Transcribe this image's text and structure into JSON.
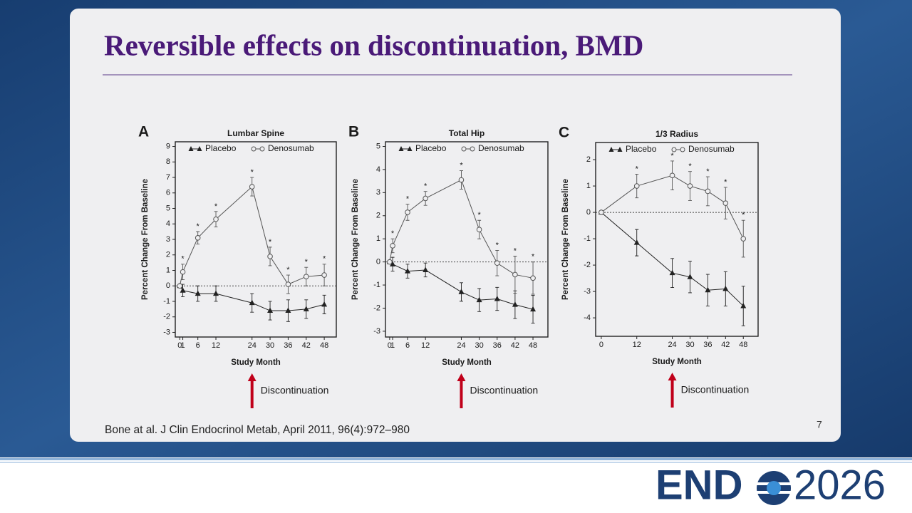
{
  "slide": {
    "title": "Reversible effects on discontinuation, BMD",
    "citation": "Bone at al. J Clin Endocrinol Metab, April 2011, 96(4):972–980",
    "page_number": "7",
    "logo": {
      "left": "END",
      "right": "2026"
    }
  },
  "chart_data": [
    {
      "type": "line",
      "label": "A",
      "title": "Lumbar Spine",
      "x_label": "Study Month",
      "y_label": "Percent Change From Baseline",
      "x": [
        0,
        1,
        6,
        12,
        24,
        30,
        36,
        42,
        48
      ],
      "xlim": [
        -1.5,
        52
      ],
      "xticks": [
        0,
        1,
        6,
        12,
        24,
        30,
        36,
        42,
        48
      ],
      "ylim": [
        -3.3,
        9.3
      ],
      "yticks": [
        -3,
        -2,
        -1,
        0,
        1,
        2,
        3,
        4,
        5,
        6,
        7,
        8,
        9
      ],
      "reference_line": 0,
      "series": [
        {
          "name": "Placebo",
          "color": "#222222",
          "marker": "triangle",
          "values": [
            0,
            -0.3,
            -0.5,
            -0.5,
            -1.1,
            -1.6,
            -1.6,
            -1.5,
            -1.2
          ],
          "errors": [
            null,
            0.4,
            0.5,
            0.5,
            0.6,
            0.6,
            0.7,
            0.6,
            0.6
          ]
        },
        {
          "name": "Denosumab",
          "color": "#555555",
          "marker": "circle",
          "values": [
            0,
            0.9,
            3.1,
            4.3,
            6.4,
            1.9,
            0.1,
            0.6,
            0.7
          ],
          "errors": [
            null,
            0.5,
            0.4,
            0.5,
            0.6,
            0.6,
            0.6,
            0.6,
            0.7
          ],
          "significance": [
            null,
            "*",
            "*",
            "*",
            "*",
            "*",
            "*",
            "*",
            "*"
          ]
        }
      ],
      "annotation": {
        "text": "Discontinuation",
        "x": 24,
        "color": "#c0001a"
      }
    },
    {
      "type": "line",
      "label": "B",
      "title": "Total Hip",
      "x_label": "Study Month",
      "y_label": "Percent Change From Baseline",
      "x": [
        0,
        1,
        6,
        12,
        24,
        30,
        36,
        42,
        48
      ],
      "xlim": [
        -1.4,
        53
      ],
      "xticks": [
        0,
        1,
        6,
        12,
        24,
        30,
        36,
        42,
        48
      ],
      "ylim": [
        -3.25,
        5.2
      ],
      "yticks": [
        -3,
        -2,
        -1,
        0,
        1,
        2,
        3,
        4,
        5
      ],
      "reference_line": 0,
      "series": [
        {
          "name": "Placebo",
          "color": "#222222",
          "marker": "triangle",
          "values": [
            0,
            -0.1,
            -0.4,
            -0.35,
            -1.3,
            -1.65,
            -1.6,
            -1.85,
            -2.05
          ],
          "errors": [
            null,
            0.3,
            0.3,
            0.3,
            0.4,
            0.5,
            0.5,
            0.6,
            0.6
          ]
        },
        {
          "name": "Denosumab",
          "color": "#555555",
          "marker": "circle",
          "values": [
            0,
            0.7,
            2.15,
            2.75,
            3.55,
            1.4,
            -0.05,
            -0.55,
            -0.7
          ],
          "errors": [
            null,
            0.3,
            0.35,
            0.3,
            0.4,
            0.4,
            0.55,
            0.8,
            0.7
          ],
          "significance": [
            null,
            "*",
            "*",
            "*",
            "*",
            "*",
            "*",
            "*",
            "*"
          ]
        }
      ],
      "annotation": {
        "text": "Discontinuation",
        "x": 24,
        "color": "#c0001a"
      }
    },
    {
      "type": "line",
      "label": "C",
      "title": "1/3 Radius",
      "x_label": "Study Month",
      "y_label": "Percent Change From Baseline",
      "x": [
        0,
        12,
        24,
        30,
        36,
        42,
        48
      ],
      "xlim": [
        -1.9,
        53
      ],
      "xticks": [
        0,
        12,
        24,
        30,
        36,
        42,
        48
      ],
      "ylim": [
        -4.7,
        2.65
      ],
      "yticks": [
        -4,
        -3,
        -2,
        -1,
        0,
        1,
        2
      ],
      "reference_line": 0,
      "series": [
        {
          "name": "Placebo",
          "color": "#222222",
          "marker": "triangle",
          "values": [
            0,
            -1.15,
            -2.3,
            -2.45,
            -2.95,
            -2.9,
            -3.55
          ],
          "errors": [
            null,
            0.5,
            0.55,
            0.6,
            0.6,
            0.65,
            0.75
          ]
        },
        {
          "name": "Denosumab",
          "color": "#555555",
          "marker": "circle",
          "values": [
            0,
            1.0,
            1.4,
            1.0,
            0.8,
            0.35,
            -1.0
          ],
          "errors": [
            null,
            0.45,
            0.55,
            0.55,
            0.55,
            0.6,
            0.7
          ],
          "significance": [
            null,
            "*",
            "*",
            "*",
            "*",
            "*",
            "*"
          ]
        }
      ],
      "annotation": {
        "text": "Discontinuation",
        "x": 24,
        "color": "#c0001a"
      }
    }
  ]
}
